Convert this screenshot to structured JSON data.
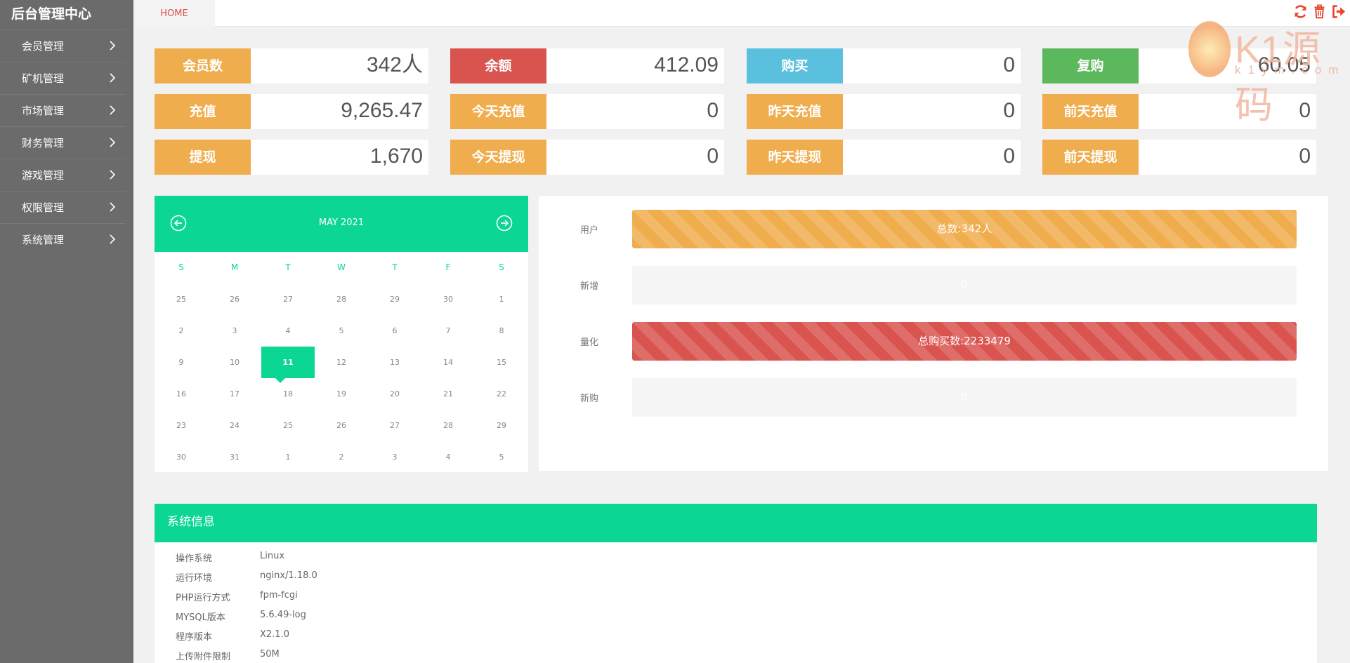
{
  "app": {
    "title": "后台管理中心"
  },
  "sidebar": {
    "items": [
      {
        "label": "会员管理"
      },
      {
        "label": "矿机管理"
      },
      {
        "label": "市场管理"
      },
      {
        "label": "财务管理"
      },
      {
        "label": "游戏管理"
      },
      {
        "label": "权限管理"
      },
      {
        "label": "系统管理"
      }
    ]
  },
  "topbar": {
    "tab_label": "HOME",
    "actions": [
      {
        "icon": "refresh-icon"
      },
      {
        "icon": "trash-icon"
      },
      {
        "icon": "logout-icon"
      }
    ]
  },
  "watermark": {
    "big": "K1源码",
    "small": "k1ym.com"
  },
  "stats": [
    {
      "label": "会员数",
      "value": "342人",
      "color": "#f0ad4e"
    },
    {
      "label": "余额",
      "value": "412.09",
      "color": "#d9534f"
    },
    {
      "label": "购买",
      "value": "0",
      "color": "#5bc0de"
    },
    {
      "label": "复购",
      "value": "60.05",
      "color": "#5cb85c"
    },
    {
      "label": "充值",
      "value": "9,265.47",
      "color": "#f0ad4e"
    },
    {
      "label": "今天充值",
      "value": "0",
      "color": "#f0ad4e"
    },
    {
      "label": "昨天充值",
      "value": "0",
      "color": "#f0ad4e"
    },
    {
      "label": "前天充值",
      "value": "0",
      "color": "#f0ad4e"
    },
    {
      "label": "提现",
      "value": "1,670",
      "color": "#f0ad4e"
    },
    {
      "label": "今天提现",
      "value": "0",
      "color": "#f0ad4e"
    },
    {
      "label": "昨天提现",
      "value": "0",
      "color": "#f0ad4e"
    },
    {
      "label": "前天提现",
      "value": "0",
      "color": "#f0ad4e"
    }
  ],
  "calendar": {
    "month": "MAY 2021",
    "weekdays": [
      "S",
      "M",
      "T",
      "W",
      "T",
      "F",
      "S"
    ],
    "weeks": [
      [
        "25",
        "26",
        "27",
        "28",
        "29",
        "30",
        "1"
      ],
      [
        "2",
        "3",
        "4",
        "5",
        "6",
        "7",
        "8"
      ],
      [
        "9",
        "10",
        "11",
        "12",
        "13",
        "14",
        "15"
      ],
      [
        "16",
        "17",
        "18",
        "19",
        "20",
        "21",
        "22"
      ],
      [
        "23",
        "24",
        "25",
        "26",
        "27",
        "28",
        "29"
      ],
      [
        "30",
        "31",
        "1",
        "2",
        "3",
        "4",
        "5"
      ]
    ],
    "today": "11",
    "accent": "#0bd694"
  },
  "progress": [
    {
      "label": "用户",
      "text": "总数:342人",
      "fill": 1.0,
      "style": "orange"
    },
    {
      "label": "新增",
      "text": "0",
      "fill": 0.0,
      "style": "orange"
    },
    {
      "label": "量化",
      "text": "总购买数:2233479",
      "fill": 1.0,
      "style": "red"
    },
    {
      "label": "新购",
      "text": "0",
      "fill": 0.0,
      "style": "red"
    }
  ],
  "sysinfo": {
    "title": "系统信息",
    "rows": [
      {
        "key": "操作系统",
        "value": "Linux"
      },
      {
        "key": "运行环境",
        "value": "nginx/1.18.0"
      },
      {
        "key": "PHP运行方式",
        "value": "fpm-fcgi"
      },
      {
        "key": "MYSQL版本",
        "value": "5.6.49-log"
      },
      {
        "key": "程序版本",
        "value": "X2.1.0"
      },
      {
        "key": "上传附件限制",
        "value": "50M"
      }
    ]
  }
}
